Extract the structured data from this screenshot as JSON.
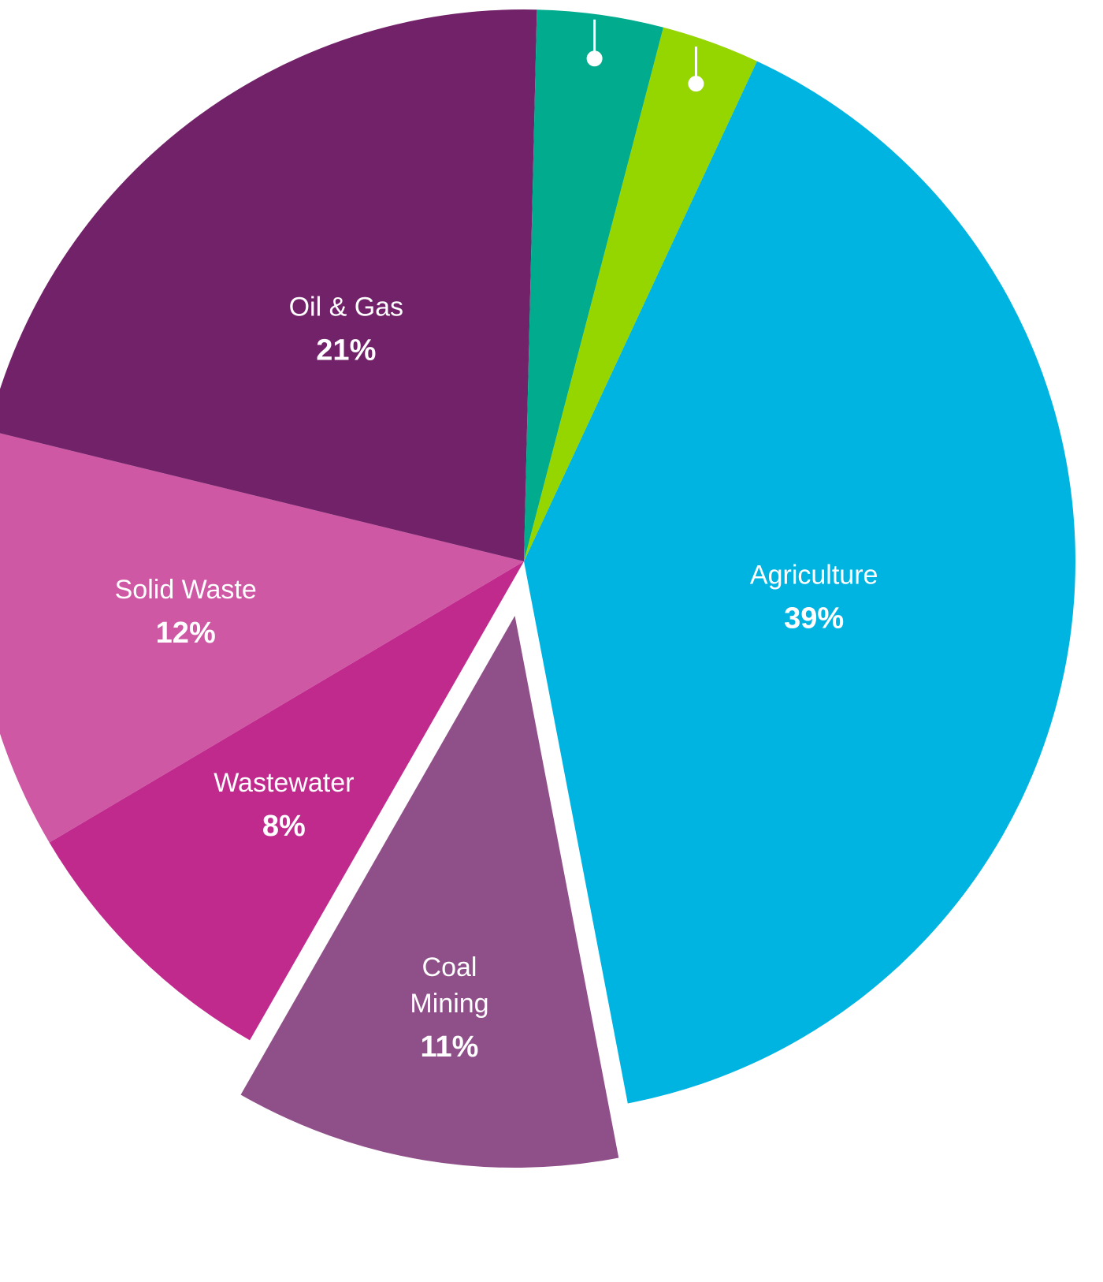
{
  "chart_data": {
    "type": "pie",
    "title": "",
    "series": [
      {
        "values": [
          39,
          11,
          8,
          12,
          21,
          3.6,
          2.8
        ],
        "labels": [
          "Agriculture",
          "Coal Mining",
          "Wastewater",
          "Solid Waste",
          "Oil & Gas",
          "",
          ""
        ],
        "display_labels": [
          [
            "Agriculture"
          ],
          [
            "Coal",
            "Mining"
          ],
          [
            "Wastewater"
          ],
          [
            "Solid Waste"
          ],
          [
            "Oil & Gas"
          ],
          [],
          []
        ],
        "display_values": [
          "39%",
          "11%",
          "8%",
          "12%",
          "21%",
          "",
          ""
        ],
        "colors": [
          "#00b4e2",
          "#8f5089",
          "#c02a8d",
          "#cf58a5",
          "#722269",
          "#00ab8e",
          "#95d500"
        ],
        "exploded": [
          false,
          true,
          false,
          false,
          false,
          false,
          false
        ],
        "callout_dots": [
          false,
          false,
          false,
          false,
          false,
          true,
          true
        ]
      }
    ],
    "legend": "none"
  }
}
